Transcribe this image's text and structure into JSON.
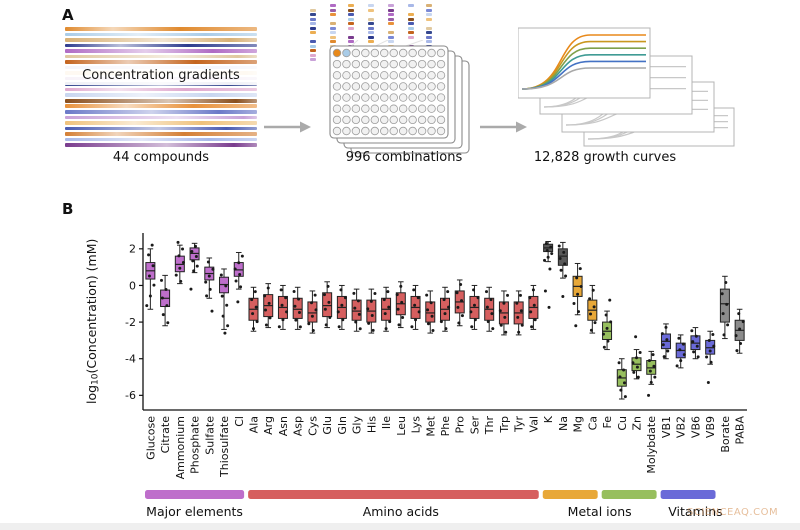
{
  "watermark": "SCIENCEAQ.COM",
  "panel_a": {
    "label": "A",
    "gradients_label": "Concentration gradients",
    "caption_compounds": "44 compounds",
    "caption_combinations": "996 combinations",
    "caption_curves": "12,828 growth curves",
    "stripe_colors": [
      "#E08A2E",
      "#A9CCE8",
      "#D9B175",
      "#2E3C8E",
      "#B06BC4",
      "#E0C9A0",
      "#C4641E",
      "#7B89D6",
      "#ECAE52",
      "#9A5FA8",
      "#35488F",
      "#DFA8CE",
      "#C8D6F0",
      "#8A4F1E",
      "#E8913B",
      "#6B79C8",
      "#C9A2D8",
      "#EFC27C",
      "#4A5AB0",
      "#D47F35",
      "#A8B8E8",
      "#7A3C8E"
    ],
    "well_highlight_colors": [
      "#E8891A",
      "#A9CCE8"
    ],
    "curve_colors": [
      "#E8891A",
      "#C9971E",
      "#7FA04A",
      "#3F9B94",
      "#4472C4",
      "#A9A9A9"
    ]
  },
  "panel_b": {
    "label": "B",
    "ylabel_prefix": "log",
    "ylabel_sub": "10",
    "ylabel_suffix": "(Concentration) (mM)"
  },
  "chart_data": {
    "type": "box",
    "title": "",
    "xlabel": "",
    "ylabel": "log10(Concentration) (mM)",
    "ylim": [
      -6.8,
      2.7
    ],
    "yticks": [
      2,
      0,
      -2,
      -4,
      -6
    ],
    "grid": false,
    "groups": [
      {
        "id": "major",
        "label": "Major elements",
        "color": "#BE6ECB",
        "bar_range": [
          0,
          6
        ]
      },
      {
        "id": "amino",
        "label": "Amino acids",
        "color": "#D65F5F",
        "bar_range": [
          7,
          26
        ]
      },
      {
        "id": "salts",
        "label": "",
        "color": "#5A5A5A",
        "bar_range": null
      },
      {
        "id": "metal_orange",
        "label": "Metal ions",
        "color": "#E8A838",
        "bar_range": [
          27,
          30
        ]
      },
      {
        "id": "metal_green",
        "label": "Metal ions",
        "color": "#97BF5E",
        "bar_range": [
          31,
          34
        ]
      },
      {
        "id": "vitamins",
        "label": "Vitamins",
        "color": "#6A6AD8",
        "bar_range": [
          35,
          38
        ]
      },
      {
        "id": "other",
        "label": "",
        "color": "#8C8C8C",
        "bar_range": null
      }
    ],
    "group_labels": [
      {
        "label": "Major elements",
        "center_index": 3
      },
      {
        "label": "Amino acids",
        "center_index": 17
      },
      {
        "label": "Metal ions",
        "center_index": 30.5
      },
      {
        "label": "Vitamins",
        "center_index": 37
      }
    ],
    "boxes": [
      {
        "name": "Glucose",
        "group": "major",
        "whislo": -1.3,
        "q1": 0.35,
        "med": 0.8,
        "q3": 1.25,
        "whishi": 2.0,
        "outliers": [
          2.2
        ]
      },
      {
        "name": "Citrate",
        "group": "major",
        "whislo": -2.2,
        "q1": -1.15,
        "med": -0.7,
        "q3": -0.25,
        "whishi": 0.55,
        "outliers": []
      },
      {
        "name": "Ammonium",
        "group": "major",
        "whislo": 0.1,
        "q1": 0.75,
        "med": 1.15,
        "q3": 1.6,
        "whishi": 2.2,
        "outliers": [
          2.35
        ]
      },
      {
        "name": "Phosphate",
        "group": "major",
        "whislo": 0.7,
        "q1": 1.4,
        "med": 1.75,
        "q3": 2.05,
        "whishi": 2.3,
        "outliers": [
          -0.2
        ]
      },
      {
        "name": "Sulfate",
        "group": "major",
        "whislo": -0.7,
        "q1": 0.3,
        "med": 0.65,
        "q3": 1.0,
        "whishi": 1.5,
        "outliers": [
          -1.4
        ]
      },
      {
        "name": "Thiosulfate",
        "group": "major",
        "whislo": -2.4,
        "q1": -0.4,
        "med": 0.05,
        "q3": 0.45,
        "whishi": 0.9,
        "outliers": [
          -2.6
        ]
      },
      {
        "name": "Cl",
        "group": "major",
        "whislo": -0.2,
        "q1": 0.5,
        "med": 0.85,
        "q3": 1.25,
        "whishi": 1.8,
        "outliers": [
          -0.9
        ]
      },
      {
        "name": "Ala",
        "group": "amino",
        "whislo": -2.5,
        "q1": -1.9,
        "med": -1.3,
        "q3": -0.7,
        "whishi": -0.1,
        "outliers": []
      },
      {
        "name": "Arg",
        "group": "amino",
        "whislo": -2.3,
        "q1": -1.7,
        "med": -1.1,
        "q3": -0.5,
        "whishi": 0.1,
        "outliers": []
      },
      {
        "name": "Asn",
        "group": "amino",
        "whislo": -2.4,
        "q1": -1.8,
        "med": -1.2,
        "q3": -0.6,
        "whishi": 0.0,
        "outliers": []
      },
      {
        "name": "Asp",
        "group": "amino",
        "whislo": -2.4,
        "q1": -1.8,
        "med": -1.3,
        "q3": -0.7,
        "whishi": -0.1,
        "outliers": []
      },
      {
        "name": "Cys",
        "group": "amino",
        "whislo": -2.6,
        "q1": -2.0,
        "med": -1.5,
        "q3": -0.9,
        "whishi": -0.3,
        "outliers": []
      },
      {
        "name": "Glu",
        "group": "amino",
        "whislo": -2.3,
        "q1": -1.7,
        "med": -1.1,
        "q3": -0.4,
        "whishi": 0.2,
        "outliers": []
      },
      {
        "name": "Gln",
        "group": "amino",
        "whislo": -2.4,
        "q1": -1.8,
        "med": -1.2,
        "q3": -0.6,
        "whishi": 0.0,
        "outliers": []
      },
      {
        "name": "Gly",
        "group": "amino",
        "whislo": -2.5,
        "q1": -1.9,
        "med": -1.4,
        "q3": -0.8,
        "whishi": -0.2,
        "outliers": []
      },
      {
        "name": "His",
        "group": "amino",
        "whislo": -2.6,
        "q1": -2.0,
        "med": -1.4,
        "q3": -0.8,
        "whishi": -0.2,
        "outliers": []
      },
      {
        "name": "Ile",
        "group": "amino",
        "whislo": -2.5,
        "q1": -1.9,
        "med": -1.3,
        "q3": -0.7,
        "whishi": -0.1,
        "outliers": []
      },
      {
        "name": "Leu",
        "group": "amino",
        "whislo": -2.3,
        "q1": -1.6,
        "med": -1.0,
        "q3": -0.4,
        "whishi": 0.2,
        "outliers": []
      },
      {
        "name": "Lys",
        "group": "amino",
        "whislo": -2.4,
        "q1": -1.8,
        "med": -1.2,
        "q3": -0.6,
        "whishi": 0.0,
        "outliers": []
      },
      {
        "name": "Met",
        "group": "amino",
        "whislo": -2.6,
        "q1": -2.0,
        "med": -1.5,
        "q3": -0.9,
        "whishi": -0.3,
        "outliers": []
      },
      {
        "name": "Phe",
        "group": "amino",
        "whislo": -2.5,
        "q1": -1.9,
        "med": -1.3,
        "q3": -0.7,
        "whishi": -0.1,
        "outliers": []
      },
      {
        "name": "Pro",
        "group": "amino",
        "whislo": -2.2,
        "q1": -1.5,
        "med": -0.9,
        "q3": -0.3,
        "whishi": 0.3,
        "outliers": []
      },
      {
        "name": "Ser",
        "group": "amino",
        "whislo": -2.4,
        "q1": -1.8,
        "med": -1.2,
        "q3": -0.6,
        "whishi": 0.0,
        "outliers": []
      },
      {
        "name": "Thr",
        "group": "amino",
        "whislo": -2.5,
        "q1": -1.9,
        "med": -1.3,
        "q3": -0.7,
        "whishi": -0.1,
        "outliers": []
      },
      {
        "name": "Trp",
        "group": "amino",
        "whislo": -2.7,
        "q1": -2.1,
        "med": -1.5,
        "q3": -0.9,
        "whishi": -0.3,
        "outliers": []
      },
      {
        "name": "Tyr",
        "group": "amino",
        "whislo": -2.7,
        "q1": -2.1,
        "med": -1.5,
        "q3": -0.9,
        "whishi": -0.3,
        "outliers": []
      },
      {
        "name": "Val",
        "group": "amino",
        "whislo": -2.4,
        "q1": -1.8,
        "med": -1.2,
        "q3": -0.6,
        "whishi": 0.0,
        "outliers": []
      },
      {
        "name": "K",
        "group": "salts",
        "whislo": 1.3,
        "q1": 1.85,
        "med": 2.05,
        "q3": 2.25,
        "whishi": 2.4,
        "outliers": [
          0.9,
          -0.3,
          -1.2
        ]
      },
      {
        "name": "Na",
        "group": "salts",
        "whislo": 0.4,
        "q1": 1.1,
        "med": 1.6,
        "q3": 2.0,
        "whishi": 2.35,
        "outliers": [
          -0.6
        ]
      },
      {
        "name": "Mg",
        "group": "metal_orange",
        "whislo": -1.6,
        "q1": -0.6,
        "med": -0.05,
        "q3": 0.5,
        "whishi": 1.2,
        "outliers": [
          -2.2
        ]
      },
      {
        "name": "Ca",
        "group": "metal_orange",
        "whislo": -2.6,
        "q1": -1.9,
        "med": -1.35,
        "q3": -0.8,
        "whishi": 0.0,
        "outliers": []
      },
      {
        "name": "Fe",
        "group": "metal_green",
        "whislo": -3.5,
        "q1": -2.95,
        "med": -2.5,
        "q3": -2.0,
        "whishi": -1.4,
        "outliers": [
          -0.8
        ]
      },
      {
        "name": "Cu",
        "group": "metal_green",
        "whislo": -6.2,
        "q1": -5.5,
        "med": -5.05,
        "q3": -4.6,
        "whishi": -4.0,
        "outliers": []
      },
      {
        "name": "Zn",
        "group": "metal_green",
        "whislo": -5.1,
        "q1": -4.65,
        "med": -4.3,
        "q3": -3.95,
        "whishi": -3.5,
        "outliers": [
          -2.8
        ]
      },
      {
        "name": "Molybdate",
        "group": "metal_green",
        "whislo": -5.4,
        "q1": -4.85,
        "med": -4.5,
        "q3": -4.1,
        "whishi": -3.6,
        "outliers": [
          -6.0
        ]
      },
      {
        "name": "VB1",
        "group": "vitamins",
        "whislo": -4.0,
        "q1": -3.45,
        "med": -3.05,
        "q3": -2.65,
        "whishi": -2.1,
        "outliers": []
      },
      {
        "name": "VB2",
        "group": "vitamins",
        "whislo": -4.5,
        "q1": -3.95,
        "med": -3.55,
        "q3": -3.15,
        "whishi": -2.7,
        "outliers": []
      },
      {
        "name": "VB6",
        "group": "vitamins",
        "whislo": -4.0,
        "q1": -3.5,
        "med": -3.15,
        "q3": -2.75,
        "whishi": -2.3,
        "outliers": []
      },
      {
        "name": "VB9",
        "group": "vitamins",
        "whislo": -4.3,
        "q1": -3.75,
        "med": -3.4,
        "q3": -3.0,
        "whishi": -2.5,
        "outliers": [
          -5.3
        ]
      },
      {
        "name": "Borate",
        "group": "other",
        "whislo": -2.9,
        "q1": -2.0,
        "med": -1.0,
        "q3": -0.2,
        "whishi": 0.5,
        "outliers": []
      },
      {
        "name": "PABA",
        "group": "other",
        "whislo": -3.7,
        "q1": -3.0,
        "med": -2.45,
        "q3": -1.9,
        "whishi": -1.3,
        "outliers": []
      }
    ]
  }
}
